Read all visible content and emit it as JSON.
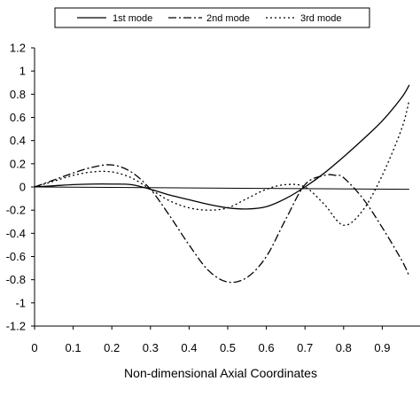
{
  "chart_data": {
    "type": "line",
    "title": "",
    "xlabel": "Non-dimensional Axial Coordinates",
    "ylabel": "",
    "xlim": [
      0,
      0.97
    ],
    "ylim": [
      -1.2,
      1.2
    ],
    "x_ticks": [
      "0",
      "0.1",
      "0.2",
      "0.3",
      "0.4",
      "0.5",
      "0.6",
      "0.7",
      "0.8",
      "0.9"
    ],
    "y_ticks": [
      "1.2",
      "1",
      "0.8",
      "0.6",
      "0.4",
      "0.2",
      "0",
      "-0.2",
      "-0.4",
      "-0.6",
      "-0.8",
      "-1",
      "-1.2"
    ],
    "grid": false,
    "legend_position": "top",
    "reference_line": {
      "x": [
        0,
        0.97
      ],
      "y": [
        0,
        -0.02
      ]
    },
    "series": [
      {
        "name": "1st mode",
        "line_style": "solid",
        "x": [
          0,
          0.05,
          0.1,
          0.15,
          0.2,
          0.25,
          0.3,
          0.35,
          0.4,
          0.45,
          0.5,
          0.55,
          0.6,
          0.65,
          0.7,
          0.75,
          0.8,
          0.85,
          0.9,
          0.95,
          0.97
        ],
        "y": [
          0,
          0.01,
          0.02,
          0.025,
          0.025,
          0.02,
          -0.02,
          -0.07,
          -0.11,
          -0.15,
          -0.18,
          -0.19,
          -0.17,
          -0.1,
          0,
          0.12,
          0.26,
          0.41,
          0.57,
          0.77,
          0.88
        ]
      },
      {
        "name": "2nd mode",
        "line_style": "dash-dot",
        "x": [
          0,
          0.05,
          0.1,
          0.15,
          0.2,
          0.25,
          0.3,
          0.35,
          0.4,
          0.45,
          0.5,
          0.55,
          0.6,
          0.65,
          0.7,
          0.75,
          0.78,
          0.8,
          0.85,
          0.9,
          0.95,
          0.97
        ],
        "y": [
          0,
          0.06,
          0.12,
          0.17,
          0.19,
          0.13,
          -0.02,
          -0.25,
          -0.5,
          -0.72,
          -0.82,
          -0.78,
          -0.6,
          -0.28,
          0.02,
          0.1,
          0.1,
          0.08,
          -0.1,
          -0.35,
          -0.63,
          -0.77
        ]
      },
      {
        "name": "3rd mode",
        "line_style": "dotted",
        "x": [
          0,
          0.05,
          0.1,
          0.15,
          0.2,
          0.25,
          0.3,
          0.35,
          0.4,
          0.45,
          0.5,
          0.55,
          0.6,
          0.65,
          0.7,
          0.75,
          0.8,
          0.85,
          0.9,
          0.95,
          0.97
        ],
        "y": [
          0,
          0.05,
          0.1,
          0.13,
          0.13,
          0.08,
          -0.02,
          -0.12,
          -0.18,
          -0.2,
          -0.18,
          -0.1,
          -0.02,
          0.02,
          0,
          -0.15,
          -0.33,
          -0.2,
          0.1,
          0.5,
          0.75
        ]
      }
    ]
  }
}
